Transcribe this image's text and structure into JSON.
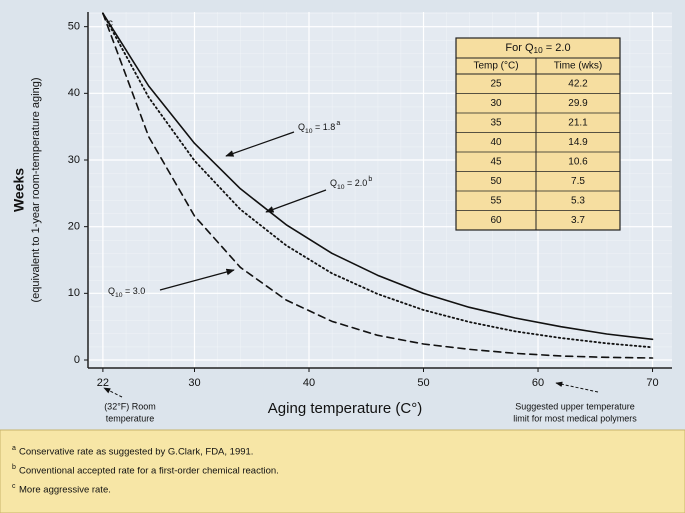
{
  "chart_data": {
    "type": "line",
    "x_label": "Aging temperature (C°)",
    "y_label": "Weeks",
    "y_sublabel": "(equivalent to 1-year room-temperature aging)",
    "x": [
      22,
      26,
      30,
      34,
      38,
      42,
      46,
      50,
      54,
      58,
      62,
      66,
      70
    ],
    "series": [
      {
        "name": "Q10 = 1.8",
        "note": "a",
        "color": "#111111",
        "style": "solid",
        "values": [
          52,
          41.1,
          32.5,
          25.7,
          20.3,
          16.0,
          12.7,
          10.0,
          7.9,
          6.3,
          5.0,
          3.9,
          3.1
        ]
      },
      {
        "name": "Q10 = 2.0",
        "note": "b",
        "color": "#111111",
        "style": "dotted",
        "values": [
          52,
          39.4,
          29.9,
          22.6,
          17.2,
          13.0,
          9.9,
          7.5,
          5.7,
          4.3,
          3.3,
          2.5,
          1.9
        ]
      },
      {
        "name": "Q10 = 3.0",
        "note": "c",
        "color": "#111111",
        "style": "dashed",
        "values": [
          52,
          33.5,
          21.6,
          13.9,
          9.0,
          5.8,
          3.7,
          2.4,
          1.6,
          1.0,
          0.6,
          0.4,
          0.3
        ]
      }
    ],
    "xlim": [
      20.7,
      71.7
    ],
    "ylim": [
      -1.2,
      52.2
    ],
    "xticks": [
      22,
      30,
      40,
      50,
      60,
      70
    ],
    "yticks": [
      0,
      10,
      20,
      30,
      40,
      50
    ],
    "grid": true,
    "annotations": [
      {
        "lines": [
          "(32°F) Room",
          "temperature"
        ]
      },
      {
        "lines": [
          "Suggested upper temperature",
          "limit for most medical polymers"
        ]
      }
    ]
  },
  "table": {
    "title": "For Q10 = 2.0",
    "header": [
      "Temp (°C)",
      "Time (wks)"
    ],
    "rows": [
      [
        "25",
        "42.2"
      ],
      [
        "30",
        "29.9"
      ],
      [
        "35",
        "21.1"
      ],
      [
        "40",
        "14.9"
      ],
      [
        "45",
        "10.6"
      ],
      [
        "50",
        "7.5"
      ],
      [
        "55",
        "5.3"
      ],
      [
        "60",
        "3.7"
      ]
    ]
  },
  "footnotes": [
    {
      "mark": "a",
      "text": "Conservative rate as suggested by G.Clark, FDA, 1991."
    },
    {
      "mark": "b",
      "text": "Conventional accepted rate for a first-order chemical reaction."
    },
    {
      "mark": "c",
      "text": "More aggressive rate."
    }
  ]
}
